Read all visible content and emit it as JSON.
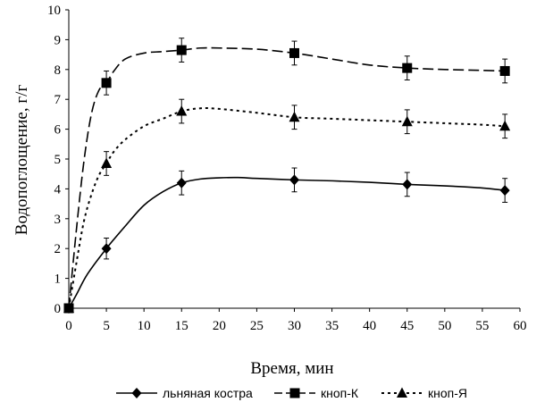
{
  "chart_data": {
    "type": "line",
    "xlabel": "Время, мин",
    "ylabel": "Водопоглощение, г/г",
    "xlim": [
      0,
      60
    ],
    "ylim": [
      0,
      10
    ],
    "xticks": [
      0,
      5,
      10,
      15,
      20,
      25,
      30,
      35,
      40,
      45,
      50,
      55,
      60
    ],
    "yticks": [
      0,
      1,
      2,
      3,
      4,
      5,
      6,
      7,
      8,
      9,
      10
    ],
    "grid": false,
    "legend_position": "bottom",
    "series": [
      {
        "name": "льняная костра",
        "marker": "diamond",
        "dash": "solid",
        "x": [
          0,
          5,
          15,
          30,
          45,
          58
        ],
        "values": [
          0,
          2.0,
          4.2,
          4.3,
          4.15,
          3.95
        ],
        "error": [
          0.1,
          0.35,
          0.4,
          0.4,
          0.4,
          0.4
        ],
        "curve_x": [
          0,
          1,
          2.5,
          5,
          7.5,
          10,
          12.5,
          15,
          17.5,
          20,
          22.5,
          25,
          30,
          35,
          40,
          45,
          50,
          55,
          58
        ],
        "curve_y": [
          0,
          0.45,
          1.15,
          2.0,
          2.75,
          3.45,
          3.9,
          4.2,
          4.33,
          4.37,
          4.38,
          4.35,
          4.3,
          4.27,
          4.22,
          4.15,
          4.1,
          4.03,
          3.95
        ]
      },
      {
        "name": "кноп-К",
        "marker": "square",
        "dash": "long-dash",
        "x": [
          0,
          5,
          15,
          30,
          45,
          58
        ],
        "values": [
          0,
          7.55,
          8.65,
          8.55,
          8.05,
          7.95
        ],
        "error": [
          0.1,
          0.4,
          0.4,
          0.4,
          0.4,
          0.4
        ],
        "curve_x": [
          0,
          1,
          2,
          3,
          4,
          5,
          6,
          7.5,
          10,
          12.5,
          15,
          17.5,
          20,
          25,
          30,
          35,
          40,
          45,
          50,
          55,
          58
        ],
        "curve_y": [
          0,
          2.6,
          4.9,
          6.5,
          7.3,
          7.55,
          7.95,
          8.35,
          8.55,
          8.6,
          8.65,
          8.72,
          8.72,
          8.68,
          8.55,
          8.35,
          8.15,
          8.05,
          8.0,
          7.97,
          7.95
        ]
      },
      {
        "name": "кноп-Я",
        "marker": "triangle",
        "dash": "dotted",
        "x": [
          0,
          5,
          15,
          30,
          45,
          58
        ],
        "values": [
          0,
          4.85,
          6.6,
          6.4,
          6.25,
          6.1
        ],
        "error": [
          0.1,
          0.4,
          0.4,
          0.4,
          0.4,
          0.4
        ],
        "curve_x": [
          0,
          1,
          2,
          3,
          4,
          5,
          6,
          7.5,
          10,
          12.5,
          15,
          17.5,
          20,
          25,
          30,
          35,
          40,
          45,
          50,
          55,
          58
        ],
        "curve_y": [
          0,
          1.5,
          2.9,
          3.8,
          4.45,
          4.85,
          5.25,
          5.65,
          6.1,
          6.35,
          6.6,
          6.7,
          6.68,
          6.55,
          6.4,
          6.35,
          6.3,
          6.25,
          6.2,
          6.15,
          6.1
        ]
      }
    ]
  }
}
